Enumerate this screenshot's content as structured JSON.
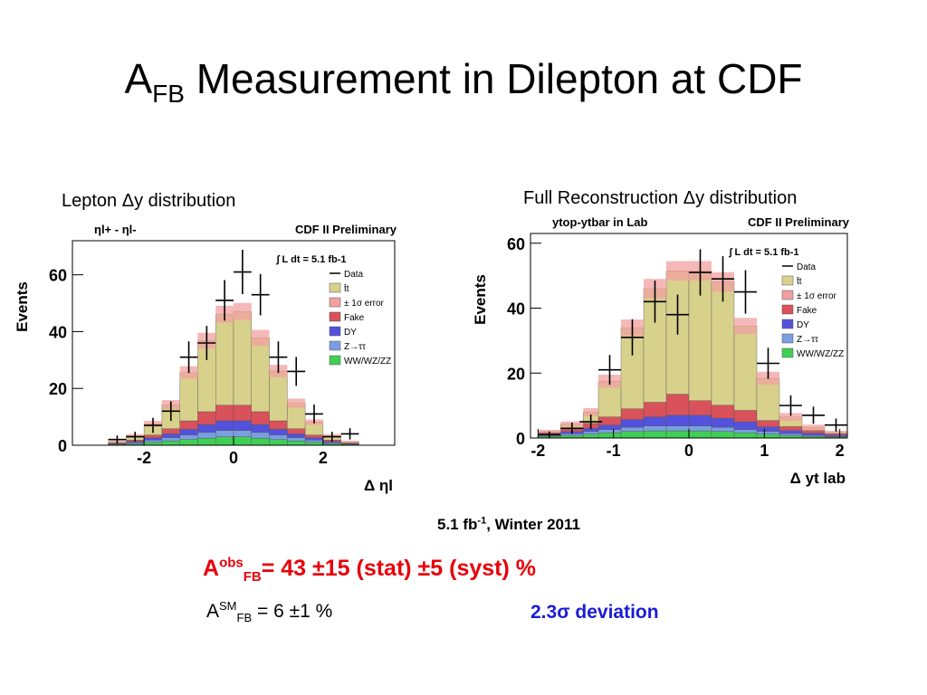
{
  "slide": {
    "title_main": "A",
    "title_sub": "FB",
    "title_rest": " Measurement in Dilepton at CDF",
    "left_caption": "Lepton Δy distribution",
    "right_caption": "Full Reconstruction Δy distribution",
    "lumi_note_a": "5.1 fb",
    "lumi_note_sup": "-1",
    "lumi_note_b": ",  Winter 2011",
    "afb_obs_a": "A",
    "afb_obs_sup": "obs",
    "afb_obs_sub": "FB",
    "afb_obs_b": "= 43 ±15 (stat) ±5 (syst) %",
    "afb_sm_a": "A",
    "afb_sm_sup": "SM",
    "afb_sm_sub": "FB",
    "afb_sm_b": " =  6 ±1 %",
    "deviation": "2.3σ deviation"
  },
  "colors": {
    "ttbar": "#d8d18c",
    "error": "#f2a0a0",
    "fake": "#d9515a",
    "dy": "#5252dd",
    "ztautau": "#7a9ee0",
    "diboson": "#3fcf55",
    "data": "#000000"
  },
  "chart_data": [
    {
      "type": "bar",
      "stacked": true,
      "header_left": "ηl+ - ηl-",
      "header_right": "CDF II Preliminary",
      "ylabel": "Events",
      "xlabel": "Δ ηl",
      "lumi_label": "∫ L dt = 5.1 fb-1",
      "xlim": [
        -3.6,
        3.6
      ],
      "ylim": [
        0,
        72
      ],
      "xticks": [
        -2,
        0,
        2
      ],
      "yticks": [
        0,
        20,
        40,
        60
      ],
      "bin_edges": [
        -2.8,
        -2.4,
        -2.0,
        -1.6,
        -1.2,
        -0.8,
        -0.4,
        0.0,
        0.4,
        0.8,
        1.2,
        1.6,
        2.0,
        2.4,
        2.8
      ],
      "series": [
        {
          "name": "WW/WZ/ZZ",
          "color_key": "diboson",
          "values": [
            0.2,
            0.5,
            1.0,
            1.5,
            2.0,
            2.5,
            3.0,
            3.0,
            2.5,
            2.0,
            1.5,
            1.0,
            0.5,
            0.2
          ]
        },
        {
          "name": "Z→ττ",
          "color_key": "ztautau",
          "values": [
            0.2,
            0.4,
            0.8,
            1.2,
            1.6,
            2.0,
            2.2,
            2.2,
            2.0,
            1.6,
            1.2,
            0.8,
            0.4,
            0.2
          ]
        },
        {
          "name": "DY",
          "color_key": "dy",
          "values": [
            0.2,
            0.4,
            0.8,
            1.3,
            2.0,
            2.8,
            3.4,
            3.4,
            2.8,
            2.0,
            1.3,
            0.8,
            0.4,
            0.2
          ]
        },
        {
          "name": "Fake",
          "color_key": "fake",
          "values": [
            0.2,
            0.5,
            1.0,
            1.8,
            3.0,
            4.5,
            5.5,
            5.5,
            4.5,
            3.0,
            1.8,
            1.0,
            0.5,
            0.2
          ]
        },
        {
          "name": "t̄t",
          "color_key": "ttbar",
          "values": [
            0.5,
            1.5,
            4.0,
            8.5,
            17.0,
            25.0,
            32.0,
            33.0,
            26.0,
            17.5,
            9.0,
            4.5,
            1.5,
            0.5
          ]
        }
      ],
      "error_band": [
        0.3,
        0.6,
        1.0,
        1.6,
        2.2,
        2.8,
        3.0,
        3.0,
        2.8,
        2.2,
        1.6,
        1.0,
        0.6,
        0.3
      ],
      "data": {
        "x": [
          -2.6,
          -2.2,
          -1.8,
          -1.4,
          -1.0,
          -0.6,
          -0.2,
          0.2,
          0.6,
          1.0,
          1.4,
          1.8,
          2.2,
          2.6
        ],
        "y": [
          2,
          3,
          7,
          12,
          31,
          36,
          51,
          61,
          53,
          31,
          26,
          11,
          3,
          4
        ]
      },
      "legend": [
        "Data",
        "t̄t",
        "± 1σ error",
        "Fake",
        "DY",
        "Z→ττ",
        "WW/WZ/ZZ"
      ]
    },
    {
      "type": "bar",
      "stacked": true,
      "header_left": "ytop-ytbar in Lab",
      "header_right": "CDF II Preliminary",
      "ylabel": "Events",
      "xlabel": "Δ yt lab",
      "lumi_label": "∫ L dt = 5.1 fb-1",
      "xlim": [
        -2.1,
        2.1
      ],
      "ylim": [
        0,
        63
      ],
      "xticks": [
        -2,
        -1,
        0,
        1,
        2
      ],
      "yticks": [
        0,
        20,
        40,
        60
      ],
      "bin_edges": [
        -2.0,
        -1.7,
        -1.4,
        -1.2,
        -0.9,
        -0.6,
        -0.3,
        0.0,
        0.3,
        0.6,
        0.9,
        1.2,
        1.5,
        1.8,
        2.1
      ],
      "series": [
        {
          "name": "WW/WZ/ZZ",
          "color_key": "diboson",
          "values": [
            0.5,
            0.8,
            1.2,
            1.6,
            2.0,
            2.2,
            2.2,
            2.2,
            2.0,
            1.6,
            1.2,
            0.8,
            0.5,
            0.3
          ]
        },
        {
          "name": "Z→ττ",
          "color_key": "ztautau",
          "values": [
            0.3,
            0.5,
            0.8,
            1.0,
            1.3,
            1.5,
            1.5,
            1.5,
            1.3,
            1.0,
            0.8,
            0.5,
            0.3,
            0.2
          ]
        },
        {
          "name": "DY",
          "color_key": "dy",
          "values": [
            0.4,
            0.7,
            1.0,
            1.4,
            2.4,
            2.8,
            3.3,
            3.3,
            2.8,
            2.4,
            1.4,
            1.0,
            0.7,
            0.4
          ]
        },
        {
          "name": "Fake",
          "color_key": "fake",
          "values": [
            0.4,
            0.8,
            1.5,
            2.5,
            3.3,
            4.5,
            6.5,
            4.5,
            4.0,
            3.5,
            2.0,
            1.2,
            0.8,
            0.4
          ]
        },
        {
          "name": "t̄t",
          "color_key": "ttbar",
          "values": [
            0.5,
            1.5,
            3.5,
            11.0,
            25.0,
            35.0,
            38.0,
            40.0,
            38.0,
            26.0,
            13.0,
            3.0,
            1.0,
            0.5
          ]
        }
      ],
      "error_band": [
        0.4,
        0.8,
        1.2,
        2.0,
        2.5,
        3.0,
        3.0,
        3.0,
        3.0,
        2.5,
        2.0,
        1.2,
        0.8,
        0.4
      ],
      "data": {
        "x": [
          -1.85,
          -1.55,
          -1.3,
          -1.05,
          -0.75,
          -0.45,
          -0.15,
          0.15,
          0.45,
          0.75,
          1.05,
          1.35,
          1.65,
          1.95
        ],
        "y": [
          1,
          3,
          5,
          21,
          31,
          42,
          38,
          51,
          49,
          45,
          23,
          10,
          7,
          4
        ]
      },
      "legend": [
        "Data",
        "t̄t",
        "± 1σ error",
        "Fake",
        "DY",
        "Z→ττ",
        "WW/WZ/ZZ"
      ]
    }
  ]
}
